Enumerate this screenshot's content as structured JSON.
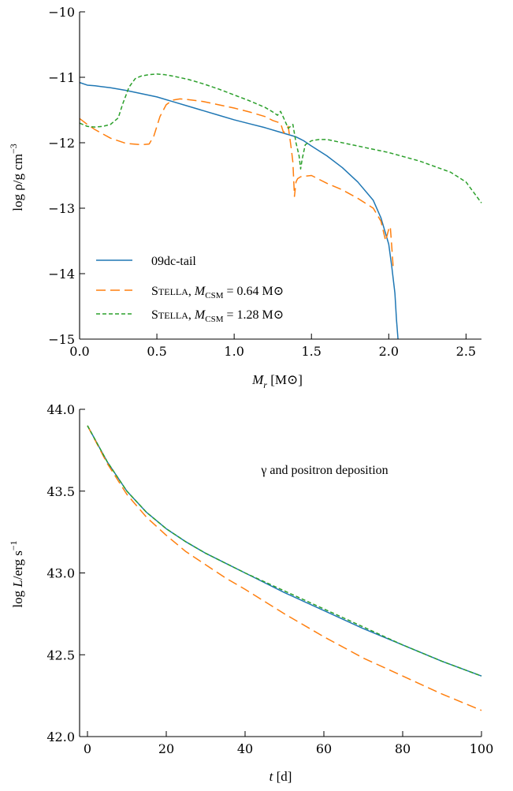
{
  "chart_data": [
    {
      "type": "line",
      "xlabel": "M_r [M_⊙]",
      "ylabel": "log ρ / g cm^−3",
      "xlim": [
        0.0,
        2.6
      ],
      "ylim": [
        -15,
        -10
      ],
      "xticks": [
        0.0,
        0.5,
        1.0,
        1.5,
        2.0,
        2.5
      ],
      "xtick_labels": [
        "0.0",
        "0.5",
        "1.0",
        "1.5",
        "2.0",
        "2.5"
      ],
      "yticks": [
        -15,
        -14,
        -13,
        -12,
        -11,
        -10
      ],
      "ytick_labels": [
        "−15",
        "−14",
        "−13",
        "−12",
        "−11",
        "−10"
      ],
      "grid": false,
      "legend_position": "lower-left",
      "series": [
        {
          "name": "09dc-tail",
          "color": "#1f77b4",
          "dash": "solid",
          "x": [
            0.0,
            0.05,
            0.1,
            0.2,
            0.3,
            0.4,
            0.5,
            0.6,
            0.7,
            0.8,
            0.9,
            1.0,
            1.1,
            1.2,
            1.3,
            1.4,
            1.45,
            1.5,
            1.6,
            1.7,
            1.8,
            1.9,
            1.95,
            2.0,
            2.02,
            2.04,
            2.05,
            2.06
          ],
          "values": [
            -11.08,
            -11.12,
            -11.13,
            -11.16,
            -11.2,
            -11.25,
            -11.3,
            -11.37,
            -11.44,
            -11.51,
            -11.58,
            -11.65,
            -11.71,
            -11.77,
            -11.84,
            -11.91,
            -11.97,
            -12.05,
            -12.2,
            -12.38,
            -12.6,
            -12.88,
            -13.15,
            -13.55,
            -13.9,
            -14.3,
            -14.7,
            -15.0
          ]
        },
        {
          "name": "STELLA, M_CSM = 0.64 M_⊙",
          "color": "#ff7f0e",
          "dash": "long",
          "x": [
            0.0,
            0.05,
            0.1,
            0.2,
            0.3,
            0.4,
            0.45,
            0.48,
            0.52,
            0.56,
            0.6,
            0.65,
            0.7,
            0.8,
            0.9,
            1.0,
            1.1,
            1.2,
            1.25,
            1.3,
            1.32,
            1.35,
            1.37,
            1.38,
            1.39,
            1.4,
            1.41,
            1.43,
            1.5,
            1.6,
            1.7,
            1.8,
            1.9,
            1.95,
            1.98,
            2.0,
            2.01,
            2.02,
            2.03
          ],
          "values": [
            -11.63,
            -11.72,
            -11.8,
            -11.93,
            -12.01,
            -12.03,
            -12.02,
            -11.9,
            -11.6,
            -11.42,
            -11.35,
            -11.33,
            -11.34,
            -11.37,
            -11.42,
            -11.47,
            -11.53,
            -11.6,
            -11.66,
            -11.7,
            -11.85,
            -11.75,
            -12.1,
            -12.3,
            -12.82,
            -12.6,
            -12.55,
            -12.52,
            -12.5,
            -12.62,
            -12.72,
            -12.85,
            -13.0,
            -13.2,
            -13.5,
            -13.32,
            -13.28,
            -13.6,
            -13.95
          ]
        },
        {
          "name": "STELLA, M_CSM = 1.28 M_⊙",
          "color": "#2ca02c",
          "dash": "short",
          "x": [
            0.0,
            0.05,
            0.1,
            0.15,
            0.2,
            0.25,
            0.28,
            0.32,
            0.36,
            0.4,
            0.45,
            0.5,
            0.55,
            0.6,
            0.7,
            0.8,
            0.9,
            1.0,
            1.1,
            1.2,
            1.25,
            1.28,
            1.3,
            1.32,
            1.35,
            1.38,
            1.4,
            1.42,
            1.43,
            1.44,
            1.46,
            1.5,
            1.55,
            1.6,
            1.8,
            2.0,
            2.2,
            2.4,
            2.5,
            2.6
          ],
          "values": [
            -11.7,
            -11.75,
            -11.76,
            -11.75,
            -11.72,
            -11.62,
            -11.4,
            -11.15,
            -11.02,
            -10.98,
            -10.96,
            -10.95,
            -10.96,
            -10.98,
            -11.03,
            -11.1,
            -11.18,
            -11.27,
            -11.36,
            -11.46,
            -11.53,
            -11.58,
            -11.52,
            -11.62,
            -11.78,
            -11.72,
            -12.0,
            -12.2,
            -12.4,
            -12.25,
            -12.03,
            -11.97,
            -11.95,
            -11.95,
            -12.05,
            -12.15,
            -12.28,
            -12.45,
            -12.6,
            -12.92
          ]
        }
      ]
    },
    {
      "type": "line",
      "xlabel": "t [d]",
      "ylabel": "log L / erg s^−1",
      "xlim": [
        -2,
        100
      ],
      "ylim": [
        42.0,
        44.0
      ],
      "xticks": [
        0,
        20,
        40,
        60,
        80,
        100
      ],
      "xtick_labels": [
        "0",
        "20",
        "40",
        "60",
        "80",
        "100"
      ],
      "yticks": [
        42.0,
        42.5,
        43.0,
        43.5,
        44.0
      ],
      "ytick_labels": [
        "42.0",
        "42.5",
        "43.0",
        "43.5",
        "44.0"
      ],
      "grid": false,
      "annotation": "γ and positron deposition",
      "series": [
        {
          "name": "09dc-tail",
          "color": "#1f77b4",
          "dash": "solid",
          "x": [
            0,
            5,
            10,
            15,
            20,
            25,
            30,
            35,
            40,
            50,
            60,
            70,
            80,
            90,
            100
          ],
          "values": [
            43.9,
            43.68,
            43.5,
            43.37,
            43.27,
            43.19,
            43.12,
            43.06,
            43.0,
            42.88,
            42.77,
            42.66,
            42.56,
            42.46,
            42.37
          ]
        },
        {
          "name": "STELLA, M_CSM = 0.64 M_⊙",
          "color": "#ff7f0e",
          "dash": "long",
          "x": [
            0,
            5,
            10,
            15,
            20,
            25,
            30,
            35,
            40,
            50,
            60,
            70,
            80,
            90,
            100
          ],
          "values": [
            43.9,
            43.67,
            43.48,
            43.34,
            43.23,
            43.13,
            43.05,
            42.97,
            42.9,
            42.75,
            42.61,
            42.48,
            42.37,
            42.26,
            42.16
          ]
        },
        {
          "name": "STELLA, M_CSM = 1.28 M_⊙",
          "color": "#2ca02c",
          "dash": "short",
          "x": [
            0,
            5,
            10,
            15,
            20,
            25,
            30,
            35,
            40,
            50,
            60,
            70,
            80,
            90,
            100
          ],
          "values": [
            43.9,
            43.68,
            43.5,
            43.37,
            43.27,
            43.19,
            43.12,
            43.06,
            43.0,
            42.89,
            42.78,
            42.67,
            42.56,
            42.46,
            42.37
          ]
        }
      ]
    }
  ]
}
